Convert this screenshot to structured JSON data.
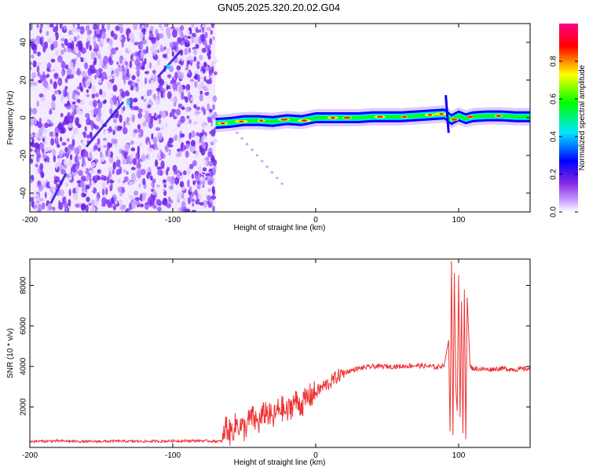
{
  "title": "GN05.2025.320.20.02.G04",
  "chart_data": [
    {
      "type": "heatmap",
      "xlabel": "Height of straight line (km)",
      "ylabel": "Frequency (Hz)",
      "xlim": [
        -200,
        150
      ],
      "ylim": [
        -50,
        50
      ],
      "xticks": [
        -200,
        -100,
        0,
        100
      ],
      "xtick_labels": [
        "-200",
        "-100",
        "0",
        "100"
      ],
      "yticks": [
        -40,
        -20,
        0,
        20,
        40
      ],
      "ytick_labels": [
        "-40",
        "-20",
        "0",
        "20",
        "40"
      ],
      "noise_region_x": [
        -200,
        -70
      ],
      "ridge": {
        "x": [
          -70,
          -60,
          -50,
          -40,
          -30,
          -20,
          -10,
          0,
          10,
          20,
          30,
          40,
          50,
          60,
          70,
          80,
          90,
          95,
          100,
          105,
          110,
          120,
          130,
          140,
          150
        ],
        "freq": [
          -3,
          -2.5,
          -1.5,
          -1.5,
          -2,
          -1,
          -1.5,
          0,
          0,
          0,
          0,
          0.5,
          0.5,
          0.5,
          1,
          1.5,
          2,
          -1,
          1,
          -0.5,
          0.5,
          1,
          1,
          0.5,
          0.5
        ]
      },
      "colorbar": {
        "label": "Normalized spectral amplitude",
        "range": [
          0.0,
          1.0
        ],
        "ticks": [
          0.0,
          0.2,
          0.4,
          0.6,
          0.8
        ],
        "tick_labels": [
          "0.0",
          "0.2",
          "0.4",
          "0.6",
          "0.8"
        ],
        "colors": [
          "#ffffff",
          "#9b30ff",
          "#0000ff",
          "#00e5ff",
          "#00ff00",
          "#ffff00",
          "#ff0000",
          "#ff00aa"
        ]
      }
    },
    {
      "type": "line",
      "xlabel": "Height of straight line (km)",
      "ylabel": "SNR (10 * v/v)",
      "xlim": [
        -200,
        150
      ],
      "ylim": [
        0,
        9300
      ],
      "xticks": [
        -200,
        -100,
        0,
        100
      ],
      "xtick_labels": [
        "-200",
        "-100",
        "0",
        "100"
      ],
      "yticks": [
        2000,
        4000,
        6000,
        8000
      ],
      "ytick_labels": [
        "2000",
        "4000",
        "6000",
        "8000"
      ],
      "series": [
        {
          "name": "SNR",
          "color": "#ee3333",
          "x": [
            -200,
            -180,
            -160,
            -140,
            -120,
            -100,
            -80,
            -65,
            -63,
            -60,
            -55,
            -50,
            -45,
            -40,
            -35,
            -30,
            -25,
            -20,
            -15,
            -10,
            -5,
            0,
            5,
            10,
            15,
            20,
            30,
            40,
            50,
            60,
            70,
            80,
            85,
            90,
            93,
            94,
            95,
            96,
            97,
            98,
            99,
            100,
            101,
            102,
            103,
            104,
            105,
            106,
            108,
            110,
            120,
            130,
            140,
            150
          ],
          "y": [
            300,
            320,
            290,
            310,
            300,
            320,
            330,
            300,
            1100,
            700,
            1200,
            900,
            1500,
            1200,
            1800,
            1400,
            2000,
            1700,
            2300,
            2100,
            2500,
            2700,
            3000,
            3200,
            3500,
            3700,
            3900,
            4000,
            4000,
            4000,
            4050,
            4000,
            3950,
            4100,
            5300,
            800,
            9200,
            600,
            8600,
            3000,
            1800,
            8500,
            1500,
            7200,
            700,
            7800,
            400,
            7400,
            4000,
            3900,
            3850,
            3900,
            3850,
            3900
          ]
        }
      ]
    }
  ]
}
